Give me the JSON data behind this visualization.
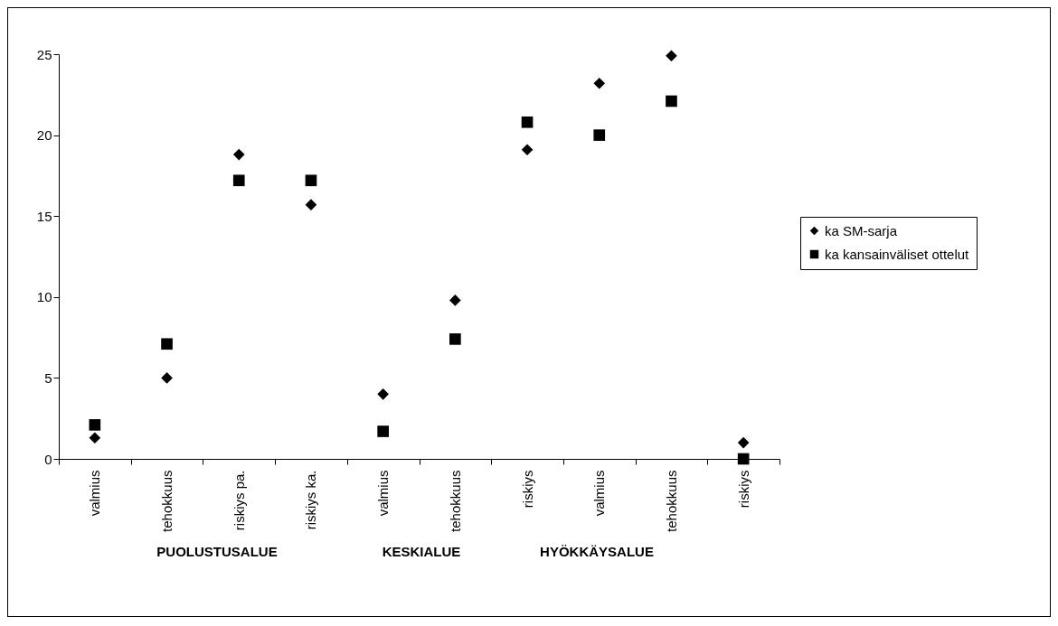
{
  "chart_data": {
    "type": "scatter",
    "categories": [
      "valmius",
      "tehokkuus",
      "riskiys pa.",
      "riskiys ka.",
      "valmius",
      "tehokkuus",
      "riskiys",
      "valmius",
      "tehokkuus",
      "riskiys"
    ],
    "series": [
      {
        "name": "ka SM-sarja",
        "color": "#000000",
        "marker": "diamond",
        "values": [
          1.3,
          5.0,
          18.8,
          15.7,
          4.0,
          9.8,
          19.1,
          23.2,
          24.9,
          1.0
        ]
      },
      {
        "name": "ka kansainväliset ottelut",
        "color": "#000000",
        "marker": "square",
        "values": [
          2.1,
          7.1,
          17.2,
          17.2,
          1.7,
          7.4,
          20.8,
          20.0,
          22.1,
          0.0
        ]
      }
    ],
    "ylim": [
      0,
      25
    ],
    "yticks": [
      0,
      5,
      10,
      15,
      20,
      25
    ],
    "grid": false,
    "legend": "right",
    "annotations": [
      "PUOLUSTUSALUE",
      "KESKIALUE",
      "HYÖKKÄYSALUE"
    ]
  }
}
